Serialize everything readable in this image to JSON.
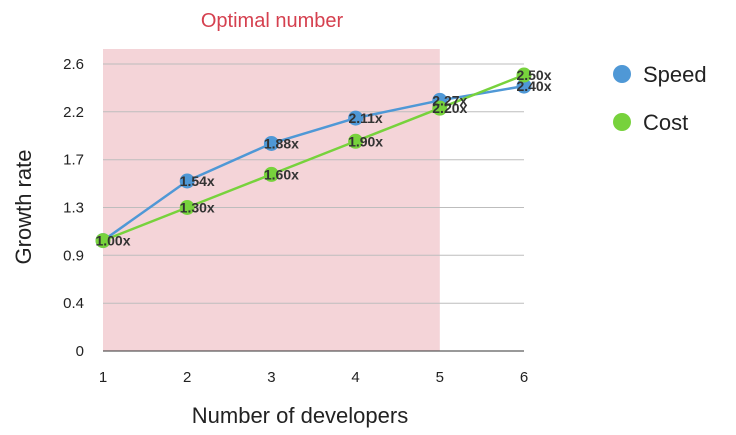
{
  "chart_data": {
    "type": "line",
    "x": [
      1,
      2,
      3,
      4,
      5,
      6
    ],
    "xlim": [
      1,
      6
    ],
    "x_ticks": [
      "1",
      "2",
      "3",
      "4",
      "5",
      "6"
    ],
    "ylim": [
      0,
      2.6
    ],
    "y_ticks": [
      {
        "value": 0,
        "label": "0"
      },
      {
        "value": 0.433,
        "label": "0.4"
      },
      {
        "value": 0.867,
        "label": "0.9"
      },
      {
        "value": 1.3,
        "label": "1.3"
      },
      {
        "value": 1.733,
        "label": "1.7"
      },
      {
        "value": 2.167,
        "label": "2.2"
      },
      {
        "value": 2.6,
        "label": "2.6"
      }
    ],
    "xlabel": "Number of developers",
    "ylabel": "Growth rate",
    "grid": true,
    "legend_position": "right",
    "highlight_region": {
      "label": "Optimal number",
      "x_from": 1,
      "x_to": 5,
      "color": "#f4d4d8"
    },
    "series": [
      {
        "name": "Speed",
        "color": "#4f98d6",
        "values": [
          1.0,
          1.54,
          1.88,
          2.11,
          2.27,
          2.4
        ],
        "labels": [
          "1.00x",
          "1.54x",
          "1.88x",
          "2.11x",
          "2.27x",
          "2.40x"
        ]
      },
      {
        "name": "Cost",
        "color": "#77d23c",
        "values": [
          1.0,
          1.3,
          1.6,
          1.9,
          2.2,
          2.5
        ],
        "labels": [
          "",
          "1.30x",
          "1.60x",
          "1.90x",
          "2.20x",
          "2.50x"
        ]
      }
    ]
  }
}
